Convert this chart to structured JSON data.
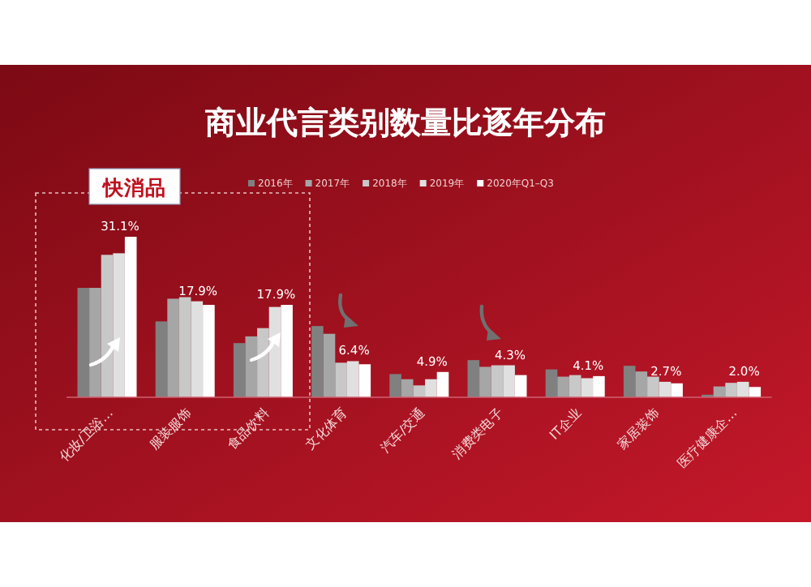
{
  "chart_data": {
    "type": "bar",
    "title": "商业代言类别数量比逐年分布",
    "legend": "top",
    "annotations": [
      "快消品"
    ],
    "categories": [
      "化妆/卫浴…",
      "服装服饰",
      "食品饮料",
      "文化体育",
      "汽车/交通",
      "消费类电子",
      "IT企业",
      "家居装饰",
      "医疗健康企…"
    ],
    "series": [
      {
        "name": "2016年",
        "color": "#808080",
        "values": [
          21.2,
          14.7,
          10.5,
          13.8,
          4.5,
          7.2,
          5.4,
          6.1,
          0.5
        ]
      },
      {
        "name": "2017年",
        "color": "#a6a6a6",
        "values": [
          21.2,
          19.1,
          11.8,
          12.3,
          3.5,
          5.9,
          4.0,
          5.0,
          2.1
        ]
      },
      {
        "name": "2018年",
        "color": "#c8c8c8",
        "values": [
          27.6,
          19.4,
          13.4,
          6.7,
          2.3,
          6.2,
          4.3,
          4.0,
          2.8
        ]
      },
      {
        "name": "2019年",
        "color": "#e0e0e0",
        "values": [
          27.9,
          18.6,
          17.5,
          7.0,
          3.5,
          6.2,
          3.7,
          3.0,
          3.0
        ]
      },
      {
        "name": "2020年Q1–Q3",
        "color": "#ffffff",
        "values": [
          31.1,
          17.9,
          17.9,
          6.4,
          4.9,
          4.3,
          4.1,
          2.7,
          2.0
        ],
        "value_labels": [
          "31.1%",
          "17.9%",
          "17.9%",
          "6.4%",
          "4.9%",
          "4.3%",
          "4.1%",
          "2.7%",
          "2.0%"
        ]
      }
    ]
  }
}
